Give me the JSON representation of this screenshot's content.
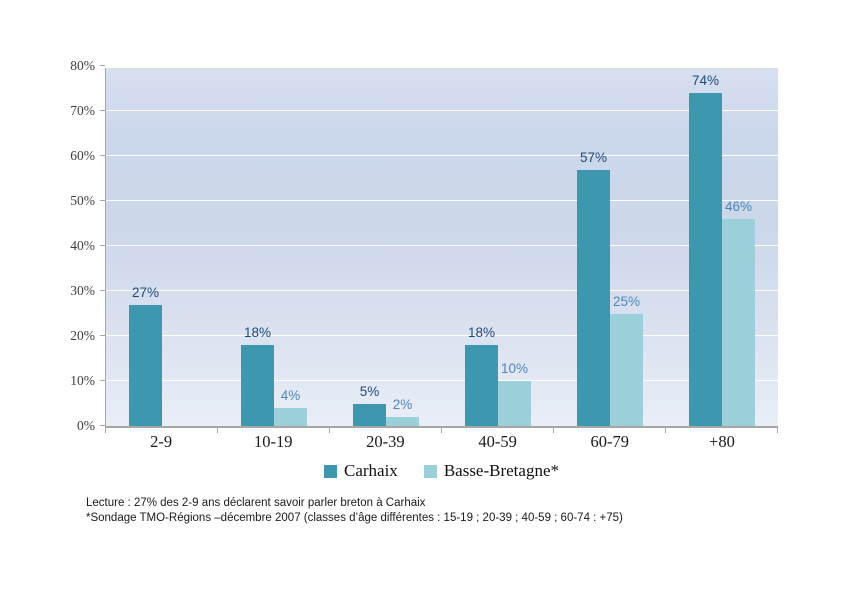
{
  "chart_data": {
    "type": "bar",
    "title": "",
    "categories": [
      "2-9",
      "10-19",
      "20-39",
      "40-59",
      "60-79",
      "+80"
    ],
    "series": [
      {
        "name": "Carhaix",
        "color": "#3c97af",
        "label_color": "#1f497d",
        "values": [
          27,
          18,
          5,
          18,
          57,
          74
        ]
      },
      {
        "name": "Basse-Bretagne*",
        "color": "#9bd0db",
        "label_color": "#4e87ba",
        "values": [
          null,
          4,
          2,
          10,
          25,
          46
        ]
      }
    ],
    "value_suffix": "%",
    "ylim": [
      0,
      80
    ],
    "ytick_step": 10,
    "ytick_labels": [
      "0%",
      "10%",
      "20%",
      "30%",
      "40%",
      "50%",
      "60%",
      "70%",
      "80%"
    ],
    "grid": true,
    "gridline_color": "#ffffff",
    "legend_position": "bottom"
  },
  "footnotes": {
    "line1": "Lecture : 27% des 2-9 ans déclarent savoir parler breton à Carhaix",
    "line2": "*Sondage TMO-Régions –décembre 2007 (classes d’âge différentes : 15-19 ; 20-39 ; 40-59 ; 60-74 : +75)"
  }
}
